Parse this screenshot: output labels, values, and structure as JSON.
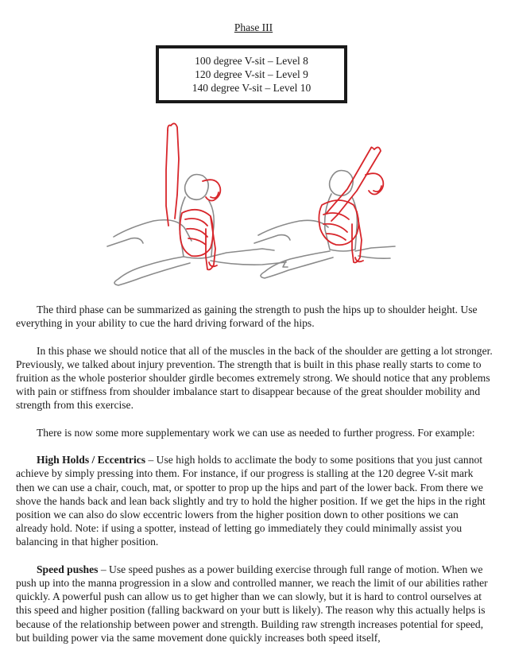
{
  "heading": "Phase III",
  "levels": [
    "100 degree V-sit – Level 8",
    "120 degree V-sit – Level 9",
    "140 degree V-sit – Level 10"
  ],
  "paragraphs": {
    "p1": "The third phase can be summarized as gaining the strength to push the hips up to shoulder height. Use everything in your ability to cue the hard driving forward of the hips.",
    "p2": "In this phase we should notice that all of the muscles in the back of the shoulder are getting a lot stronger. Previously, we talked about injury prevention. The strength that is built in this phase really starts to come to fruition as the whole posterior shoulder girdle becomes extremely strong. We should notice that any problems with pain or stiffness from shoulder imbalance start to disappear because of the great shoulder mobility and strength from this exercise.",
    "p3": "There is now some more supplementary work we can use as needed to further progress. For example:",
    "p4_lead": "High Holds / Eccentrics",
    "p4": " – Use high holds to acclimate the body to some positions that you just cannot achieve by simply pressing into them. For instance, if our progress is stalling at the 120 degree V-sit mark then we can use a chair, couch, mat, or spotter to prop up the hips and part of the lower back. From there we shove the hands back and lean back slightly and try to hold the higher position. If we get the hips in the right position we can also do slow eccentric lowers from the higher position down to other positions we can already hold. Note: if using a spotter, instead of letting go immediately they could minimally assist you balancing in that higher position.",
    "p5_lead": "Speed pushes",
    "p5": " – Use speed pushes as a power building exercise through full range of motion. When we push up into the manna progression in a slow and controlled manner, we reach the limit of our abilities rather quickly. A powerful push can allow us to get higher than we can slowly, but it is hard to control ourselves at this speed and higher position (falling backward on your butt is likely). The reason why this actually helps is because of the relationship between power and strength. Building raw strength increases potential for speed, but building power via the same movement done quickly increases both speed itself,"
  },
  "colors": {
    "sketch_gray": "#8a8a8a",
    "sketch_red": "#d8262b",
    "text": "#1a1a1a"
  }
}
